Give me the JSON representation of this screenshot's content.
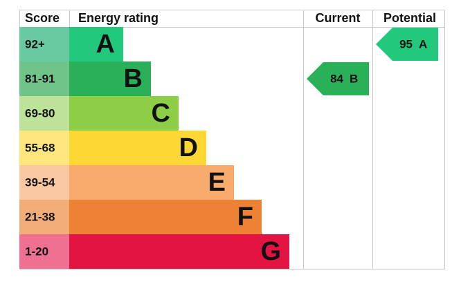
{
  "header": {
    "score": "Score",
    "rating": "Energy rating",
    "current": "Current",
    "potential": "Potential"
  },
  "bands": [
    {
      "score": "92+",
      "letter": "A",
      "bar_color": "#22c97d",
      "score_color": "#68caa1"
    },
    {
      "score": "81-91",
      "letter": "B",
      "bar_color": "#2bb05a",
      "score_color": "#70c489"
    },
    {
      "score": "69-80",
      "letter": "C",
      "bar_color": "#8dce46",
      "score_color": "#bde29a"
    },
    {
      "score": "55-68",
      "letter": "D",
      "bar_color": "#fdd834",
      "score_color": "#fde77d"
    },
    {
      "score": "39-54",
      "letter": "E",
      "bar_color": "#f8ab6c",
      "score_color": "#f9c8a0"
    },
    {
      "score": "21-38",
      "letter": "F",
      "bar_color": "#ee8234",
      "score_color": "#f2ae79"
    },
    {
      "score": "1-20",
      "letter": "G",
      "bar_color": "#e41442",
      "score_color": "#ee7192"
    }
  ],
  "current": {
    "score": 84,
    "rating": "B"
  },
  "potential": {
    "score": 95,
    "rating": "A"
  }
}
